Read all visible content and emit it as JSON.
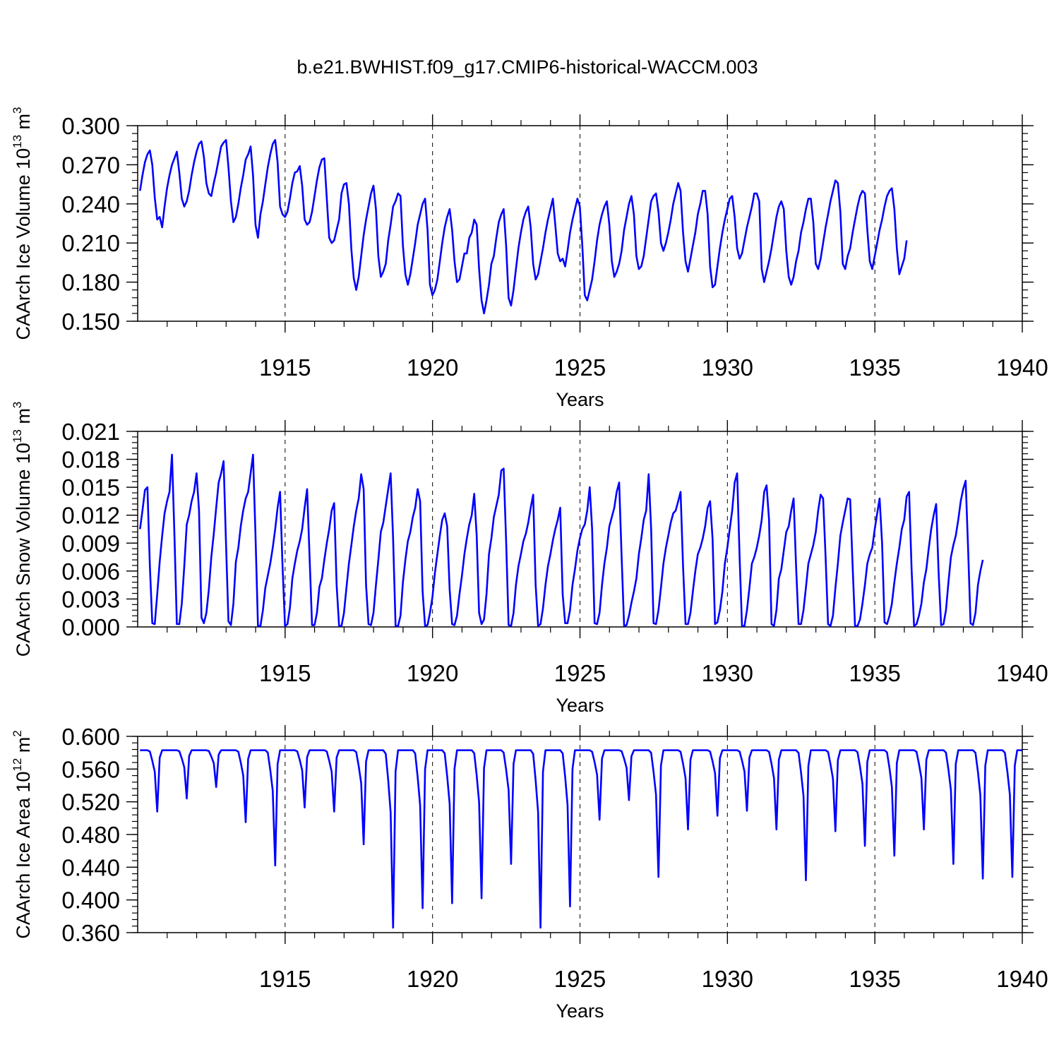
{
  "title": "b.e21.BWHIST.f09_g17.CMIP6-historical-WACCM.003",
  "line_color": "#0000ff",
  "chart_data": [
    {
      "type": "line",
      "ylabel": "CAArch Ice Volume 10",
      "ylabel_exp": "13",
      "ylabel_unit": " m",
      "ylabel_unit_exp": "3",
      "xlabel": "Years",
      "xlim": [
        1910,
        1940
      ],
      "ylim": [
        0.15,
        0.3
      ],
      "xticks": [
        1915,
        1920,
        1925,
        1930,
        1935,
        1940
      ],
      "xtick_labels": [
        "1915",
        "1920",
        "1925",
        "1930",
        "1935",
        "1940"
      ],
      "yticks": [
        0.15,
        0.18,
        0.21,
        0.24,
        0.27,
        0.3
      ],
      "ytick_labels": [
        "0.150",
        "0.180",
        "0.210",
        "0.240",
        "0.270",
        "0.300"
      ],
      "grid": "vertical dashed at major x ticks",
      "series": [
        {
          "start_year": 1910.08,
          "step": 0.08333,
          "values": [
            0.25,
            0.262,
            0.272,
            0.278,
            0.281,
            0.27,
            0.245,
            0.228,
            0.23,
            0.222,
            0.238,
            0.252,
            0.262,
            0.27,
            0.275,
            0.28,
            0.264,
            0.244,
            0.238,
            0.242,
            0.25,
            0.262,
            0.272,
            0.28,
            0.286,
            0.288,
            0.276,
            0.256,
            0.248,
            0.246,
            0.256,
            0.264,
            0.274,
            0.284,
            0.287,
            0.289,
            0.268,
            0.242,
            0.226,
            0.23,
            0.24,
            0.252,
            0.262,
            0.274,
            0.278,
            0.284,
            0.262,
            0.224,
            0.214,
            0.232,
            0.242,
            0.255,
            0.268,
            0.278,
            0.286,
            0.289,
            0.272,
            0.238,
            0.232,
            0.23,
            0.234,
            0.244,
            0.256,
            0.264,
            0.265,
            0.269,
            0.254,
            0.228,
            0.224,
            0.226,
            0.234,
            0.246,
            0.258,
            0.268,
            0.274,
            0.275,
            0.244,
            0.214,
            0.21,
            0.212,
            0.22,
            0.228,
            0.248,
            0.255,
            0.256,
            0.24,
            0.205,
            0.183,
            0.174,
            0.184,
            0.2,
            0.216,
            0.228,
            0.238,
            0.248,
            0.254,
            0.236,
            0.2,
            0.184,
            0.188,
            0.194,
            0.212,
            0.224,
            0.238,
            0.242,
            0.248,
            0.246,
            0.208,
            0.186,
            0.178,
            0.186,
            0.198,
            0.21,
            0.224,
            0.232,
            0.24,
            0.244,
            0.22,
            0.178,
            0.17,
            0.174,
            0.182,
            0.196,
            0.21,
            0.222,
            0.23,
            0.236,
            0.22,
            0.196,
            0.18,
            0.182,
            0.192,
            0.202,
            0.202,
            0.214,
            0.218,
            0.228,
            0.224,
            0.19,
            0.166,
            0.156,
            0.166,
            0.178,
            0.194,
            0.2,
            0.214,
            0.226,
            0.232,
            0.236,
            0.208,
            0.168,
            0.162,
            0.174,
            0.19,
            0.206,
            0.218,
            0.228,
            0.234,
            0.238,
            0.222,
            0.194,
            0.182,
            0.186,
            0.196,
            0.206,
            0.218,
            0.228,
            0.236,
            0.244,
            0.224,
            0.202,
            0.196,
            0.198,
            0.192,
            0.204,
            0.218,
            0.228,
            0.236,
            0.244,
            0.238,
            0.208,
            0.17,
            0.166,
            0.174,
            0.182,
            0.196,
            0.212,
            0.224,
            0.232,
            0.238,
            0.242,
            0.224,
            0.196,
            0.184,
            0.188,
            0.194,
            0.204,
            0.22,
            0.23,
            0.24,
            0.246,
            0.232,
            0.2,
            0.19,
            0.192,
            0.2,
            0.214,
            0.228,
            0.242,
            0.246,
            0.248,
            0.234,
            0.21,
            0.204,
            0.21,
            0.218,
            0.228,
            0.24,
            0.248,
            0.256,
            0.25,
            0.218,
            0.196,
            0.188,
            0.198,
            0.208,
            0.218,
            0.232,
            0.24,
            0.25,
            0.25,
            0.232,
            0.192,
            0.176,
            0.178,
            0.192,
            0.206,
            0.218,
            0.228,
            0.236,
            0.244,
            0.246,
            0.23,
            0.206,
            0.198,
            0.202,
            0.212,
            0.222,
            0.23,
            0.238,
            0.248,
            0.248,
            0.242,
            0.19,
            0.18,
            0.188,
            0.196,
            0.206,
            0.218,
            0.23,
            0.238,
            0.242,
            0.236,
            0.204,
            0.184,
            0.178,
            0.184,
            0.196,
            0.204,
            0.218,
            0.226,
            0.236,
            0.244,
            0.244,
            0.226,
            0.194,
            0.19,
            0.198,
            0.21,
            0.222,
            0.232,
            0.242,
            0.25,
            0.258,
            0.256,
            0.234,
            0.194,
            0.19,
            0.2,
            0.206,
            0.218,
            0.228,
            0.238,
            0.246,
            0.25,
            0.248,
            0.22,
            0.196,
            0.19,
            0.2,
            0.21,
            0.22,
            0.228,
            0.238,
            0.246,
            0.25,
            0.252,
            0.236,
            0.206,
            0.186,
            0.192,
            0.198,
            0.212
          ]
        }
      ]
    },
    {
      "type": "line",
      "ylabel": "CAArch Snow Volume 10",
      "ylabel_exp": "13",
      "ylabel_unit": " m",
      "ylabel_unit_exp": "3",
      "xlabel": "Years",
      "xlim": [
        1910,
        1940
      ],
      "ylim": [
        0.0,
        0.021
      ],
      "xticks": [
        1915,
        1920,
        1925,
        1930,
        1935,
        1940
      ],
      "xtick_labels": [
        "1915",
        "1920",
        "1925",
        "1930",
        "1935",
        "1940"
      ],
      "yticks": [
        0.0,
        0.003,
        0.006,
        0.009,
        0.012,
        0.015,
        0.018,
        0.021
      ],
      "ytick_labels": [
        "0.000",
        "0.003",
        "0.006",
        "0.009",
        "0.012",
        "0.015",
        "0.018",
        "0.021"
      ],
      "grid": "vertical dashed at major x ticks",
      "series": [
        {
          "start_year": 1910.08,
          "step": 0.08333,
          "values": [
            0.0105,
            0.0125,
            0.0147,
            0.015,
            0.0065,
            0.0004,
            0.0003,
            0.0035,
            0.007,
            0.0098,
            0.0122,
            0.0135,
            0.0145,
            0.0185,
            0.0098,
            0.0003,
            0.0003,
            0.0025,
            0.0065,
            0.011,
            0.012,
            0.0135,
            0.0145,
            0.0165,
            0.0125,
            0.001,
            0.0004,
            0.0015,
            0.004,
            0.0075,
            0.01,
            0.0128,
            0.0155,
            0.0165,
            0.0178,
            0.0088,
            0.0006,
            0.0002,
            0.0025,
            0.007,
            0.0085,
            0.0108,
            0.0125,
            0.0138,
            0.0145,
            0.0165,
            0.0185,
            0.0098,
            0.0001,
            0.0001,
            0.0018,
            0.0042,
            0.0055,
            0.0068,
            0.0085,
            0.0105,
            0.0128,
            0.0145,
            0.0065,
            0.0001,
            0.0003,
            0.002,
            0.0052,
            0.0068,
            0.0082,
            0.0092,
            0.0105,
            0.0128,
            0.0148,
            0.0075,
            0.0002,
            0.0002,
            0.0015,
            0.0043,
            0.0052,
            0.0072,
            0.009,
            0.0105,
            0.0125,
            0.0133,
            0.0045,
            0.0001,
            0.0001,
            0.0015,
            0.0042,
            0.0068,
            0.0088,
            0.0108,
            0.0125,
            0.0138,
            0.0164,
            0.0148,
            0.0045,
            0.0003,
            0.0002,
            0.0015,
            0.0045,
            0.0072,
            0.0102,
            0.0112,
            0.013,
            0.0148,
            0.0165,
            0.0095,
            0.0001,
            0.0001,
            0.0012,
            0.0048,
            0.0072,
            0.0092,
            0.0102,
            0.0118,
            0.0128,
            0.0148,
            0.0135,
            0.0038,
            0.0001,
            0.0002,
            0.0015,
            0.0032,
            0.0058,
            0.0078,
            0.0098,
            0.0115,
            0.0122,
            0.0108,
            0.004,
            0.0003,
            0.0002,
            0.0012,
            0.0035,
            0.0055,
            0.0078,
            0.0095,
            0.011,
            0.012,
            0.0143,
            0.0098,
            0.0015,
            0.0003,
            0.0008,
            0.0035,
            0.0078,
            0.0095,
            0.0118,
            0.013,
            0.0142,
            0.0168,
            0.017,
            0.0092,
            0.0002,
            0.0001,
            0.0015,
            0.0045,
            0.0065,
            0.0078,
            0.0092,
            0.01,
            0.0112,
            0.0128,
            0.0142,
            0.0045,
            0.0001,
            0.0003,
            0.002,
            0.0045,
            0.0065,
            0.0078,
            0.0093,
            0.0105,
            0.0115,
            0.0128,
            0.0035,
            0.0004,
            0.0004,
            0.0018,
            0.0045,
            0.0062,
            0.0082,
            0.0095,
            0.0105,
            0.011,
            0.0125,
            0.015,
            0.0105,
            0.0004,
            0.0003,
            0.0015,
            0.0045,
            0.0068,
            0.0085,
            0.0108,
            0.0118,
            0.0128,
            0.0145,
            0.0155,
            0.0075,
            0.0001,
            0.0002,
            0.0012,
            0.0026,
            0.0038,
            0.0052,
            0.0078,
            0.0095,
            0.0115,
            0.0125,
            0.0164,
            0.0105,
            0.0004,
            0.0003,
            0.0018,
            0.0042,
            0.0068,
            0.0085,
            0.0098,
            0.0112,
            0.0122,
            0.0125,
            0.0135,
            0.0145,
            0.0065,
            0.0003,
            0.0003,
            0.0015,
            0.0038,
            0.006,
            0.0078,
            0.0085,
            0.0095,
            0.0108,
            0.0128,
            0.0135,
            0.0095,
            0.0003,
            0.0005,
            0.0018,
            0.0038,
            0.0068,
            0.0085,
            0.0105,
            0.0125,
            0.0155,
            0.0165,
            0.0075,
            0.0001,
            0.0001,
            0.0018,
            0.0042,
            0.0068,
            0.0075,
            0.0085,
            0.0098,
            0.0115,
            0.0145,
            0.0152,
            0.0115,
            0.0003,
            0.0001,
            0.0018,
            0.0052,
            0.0062,
            0.0082,
            0.0102,
            0.0108,
            0.0125,
            0.0138,
            0.0065,
            0.0003,
            0.0003,
            0.0018,
            0.0042,
            0.0068,
            0.0078,
            0.0088,
            0.0102,
            0.0125,
            0.0142,
            0.0138,
            0.0075,
            0.0003,
            0.0001,
            0.0012,
            0.0042,
            0.0068,
            0.0098,
            0.0112,
            0.0125,
            0.0138,
            0.0137,
            0.0065,
            0.0001,
            0.0001,
            0.0008,
            0.0025,
            0.0045,
            0.0068,
            0.0078,
            0.0085,
            0.0105,
            0.0122,
            0.0138,
            0.009,
            0.0005,
            0.0003,
            0.0012,
            0.0025,
            0.0048,
            0.0068,
            0.0085,
            0.0105,
            0.0115,
            0.014,
            0.0145,
            0.0062,
            0.0001,
            0.0003,
            0.0012,
            0.0025,
            0.0048,
            0.0062,
            0.0085,
            0.0105,
            0.012,
            0.0132,
            0.0058,
            0.0002,
            0.0003,
            0.0018,
            0.0048,
            0.0075,
            0.0088,
            0.0098,
            0.0115,
            0.0135,
            0.0148,
            0.0157,
            0.0085,
            0.0004,
            0.0002,
            0.0015,
            0.0045,
            0.006,
            0.0072
          ]
        }
      ]
    },
    {
      "type": "line",
      "ylabel": "CAArch Ice Area 10",
      "ylabel_exp": "12",
      "ylabel_unit": " m",
      "ylabel_unit_exp": "2",
      "xlabel": "Years",
      "xlim": [
        1910,
        1940
      ],
      "ylim": [
        0.36,
        0.6
      ],
      "xticks": [
        1915,
        1920,
        1925,
        1930,
        1935,
        1940
      ],
      "xtick_labels": [
        "1915",
        "1920",
        "1925",
        "1930",
        "1935",
        "1940"
      ],
      "yticks": [
        0.36,
        0.4,
        0.44,
        0.48,
        0.52,
        0.56,
        0.6
      ],
      "ytick_labels": [
        "0.360",
        "0.400",
        "0.440",
        "0.480",
        "0.520",
        "0.560",
        "0.600"
      ],
      "grid": "vertical dashed at major x ticks",
      "series": [
        {
          "start_year": 1910.08,
          "step": 0.08333,
          "min_at_years": [
            1910.58,
            1911.58,
            1912.58,
            1913.58,
            1914.58,
            1915.58,
            1916.58,
            1917.58,
            1918.58,
            1919.58,
            1920.58,
            1921.58,
            1922.58,
            1923.58,
            1924.58,
            1925.58,
            1926.58,
            1927.58,
            1928.58,
            1929.58,
            1930.58,
            1931.58,
            1932.58,
            1933.58,
            1934.58,
            1935.58,
            1936.58,
            1937.58,
            1938.58,
            1939.58
          ],
          "annual_min": [
            0.508,
            0.524,
            0.538,
            0.495,
            0.442,
            0.513,
            0.508,
            0.468,
            0.366,
            0.39,
            0.396,
            0.402,
            0.444,
            0.366,
            0.392,
            0.498,
            0.522,
            0.428,
            0.486,
            0.503,
            0.509,
            0.486,
            0.424,
            0.484,
            0.466,
            0.454,
            0.486,
            0.444,
            0.426,
            0.428
          ],
          "max_value": 0.583
        }
      ]
    }
  ]
}
